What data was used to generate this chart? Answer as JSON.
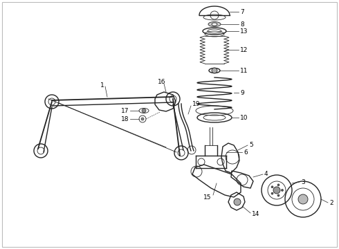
{
  "bg_color": "#ffffff",
  "line_color": "#222222",
  "label_color": "#000000",
  "lw_main": 1.0,
  "lw_thin": 0.6,
  "lw_label": 0.5,
  "fontsize": 6.5
}
